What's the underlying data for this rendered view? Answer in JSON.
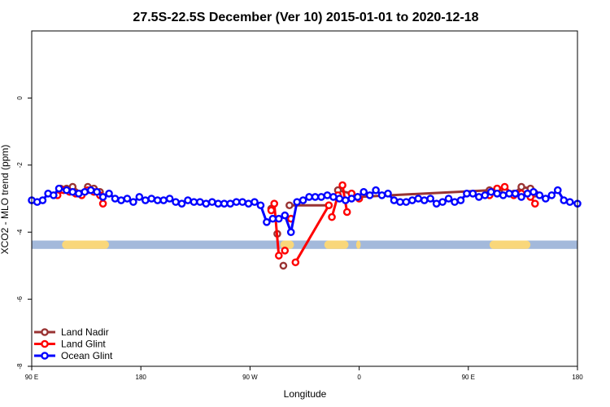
{
  "chart_data": {
    "type": "line",
    "title": "27.5S-22.5S December (Ver 10)   2015-01-01 to 2020-12-18",
    "xlabel": "Longitude",
    "ylabel": "XCO2 - MLO trend (ppm)",
    "xlim": [
      90,
      450
    ],
    "ylim": [
      -8,
      2
    ],
    "x_ticks": [
      {
        "value": 90,
        "label": "90 E"
      },
      {
        "value": 162,
        "label": "180"
      },
      {
        "value": 234,
        "label": "90 W"
      },
      {
        "value": 306,
        "label": "0"
      },
      {
        "value": 378,
        "label": "90 E"
      },
      {
        "value": 450,
        "label": "180"
      }
    ],
    "y_ticks": [
      {
        "value": 0,
        "label": "0"
      },
      {
        "value": -2,
        "label": "-2"
      },
      {
        "value": -4,
        "label": "-4"
      },
      {
        "value": -6,
        "label": "-6"
      },
      {
        "value": -8,
        "label": "-8"
      }
    ],
    "land_mask": {
      "y_range": [
        -4.5,
        -4.25
      ],
      "ocean_color": "#a3b9db",
      "land_color": "#f9d77a",
      "land_segments": [
        [
          110,
          141
        ],
        [
          254,
          263
        ],
        [
          283,
          299
        ],
        [
          304,
          307
        ],
        [
          392,
          419
        ]
      ]
    },
    "series": [
      {
        "name": "Land Nadir",
        "color": "#993333",
        "x": [
          109,
          113,
          117,
          123,
          127,
          131,
          135,
          248,
          252,
          256,
          260,
          286,
          292,
          301,
          305,
          392,
          397,
          402,
          408,
          413,
          419,
          422
        ],
        "y": [
          -2.7,
          -2.7,
          -2.65,
          -2.85,
          -2.65,
          -2.7,
          -2.8,
          -3.3,
          -4.05,
          -5.0,
          -3.2,
          -3.2,
          -2.75,
          -2.85,
          -2.95,
          -2.75,
          -2.7,
          -2.8,
          -2.85,
          -2.65,
          -2.7,
          -2.85
        ],
        "breaks_after": [
          6,
          7,
          8,
          9,
          11,
          13
        ]
      },
      {
        "name": "Land Glint",
        "color": "#ff0000",
        "x": [
          107,
          111,
          115,
          119,
          123,
          127,
          131,
          135,
          137,
          248,
          250,
          253,
          257,
          261,
          264,
          286,
          288,
          292,
          295,
          298,
          301,
          306,
          392,
          397,
          402,
          408,
          413,
          419,
          422
        ],
        "y": [
          -2.9,
          -2.75,
          -2.8,
          -2.85,
          -2.9,
          -2.75,
          -2.8,
          -2.9,
          -3.15,
          -3.35,
          -3.15,
          -4.7,
          -4.55,
          -3.6,
          -4.9,
          -3.2,
          -3.55,
          -2.9,
          -2.6,
          -3.4,
          -2.85,
          -3.0,
          -2.9,
          -2.7,
          -2.65,
          -2.9,
          -2.85,
          -2.95,
          -3.15
        ],
        "breaks_after": [
          8,
          11,
          12,
          13,
          15,
          17,
          19,
          21
        ]
      },
      {
        "name": "Ocean Glint",
        "color": "#0000ff",
        "x": [
          90,
          93.6,
          97.2,
          100.8,
          104.4,
          108,
          113,
          117,
          121,
          125,
          129,
          133,
          137,
          141,
          145,
          149,
          153,
          157,
          161,
          165,
          169,
          173,
          177,
          181,
          185,
          189,
          193,
          197,
          201,
          205,
          209,
          213,
          217,
          221,
          225,
          229,
          233,
          237,
          241,
          245,
          249,
          253,
          257,
          261,
          265,
          269,
          273,
          277,
          281,
          285,
          289,
          293,
          297,
          301,
          305,
          309,
          313,
          317,
          321,
          325,
          329,
          333,
          337,
          341,
          345,
          349,
          353,
          357,
          361,
          365,
          369,
          373,
          377,
          381,
          385,
          389,
          393,
          397,
          401,
          405,
          409,
          413,
          417,
          421,
          425,
          429,
          433,
          437,
          441,
          445,
          450
        ],
        "y": [
          -3.05,
          -3.1,
          -3.05,
          -2.85,
          -2.9,
          -2.7,
          -2.75,
          -2.8,
          -2.85,
          -2.8,
          -2.75,
          -2.8,
          -2.95,
          -2.85,
          -3.0,
          -3.05,
          -3.0,
          -3.1,
          -2.95,
          -3.05,
          -3.0,
          -3.05,
          -3.05,
          -3.0,
          -3.1,
          -3.15,
          -3.05,
          -3.1,
          -3.1,
          -3.15,
          -3.1,
          -3.15,
          -3.15,
          -3.15,
          -3.1,
          -3.1,
          -3.15,
          -3.1,
          -3.2,
          -3.7,
          -3.6,
          -3.6,
          -3.5,
          -4.0,
          -3.1,
          -3.05,
          -2.95,
          -2.95,
          -2.95,
          -2.9,
          -2.95,
          -3.0,
          -3.05,
          -3.0,
          -2.95,
          -2.8,
          -2.9,
          -2.75,
          -2.9,
          -2.85,
          -3.05,
          -3.1,
          -3.1,
          -3.05,
          -3.0,
          -3.05,
          -3.0,
          -3.15,
          -3.1,
          -3.0,
          -3.1,
          -3.05,
          -2.85,
          -2.85,
          -2.95,
          -2.9,
          -2.8,
          -2.85,
          -2.9,
          -2.85,
          -2.85,
          -2.95,
          -2.85,
          -2.8,
          -2.9,
          -3.0,
          -2.9,
          -2.75,
          -3.05,
          -3.1,
          -3.15
        ]
      }
    ],
    "legend": {
      "position": "bottom-left"
    }
  }
}
